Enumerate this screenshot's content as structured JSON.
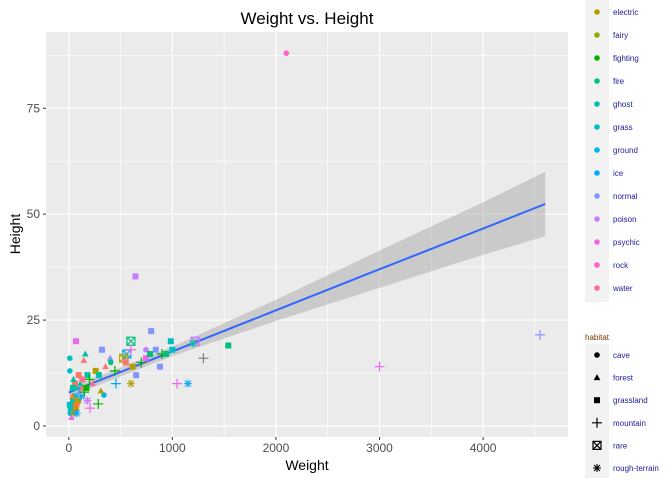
{
  "chart_data": {
    "type": "scatter",
    "title": "Weight vs. Height",
    "xlabel": "Weight",
    "ylabel": "Height",
    "xlim": [
      -220,
      4820
    ],
    "ylim": [
      -2.6,
      93
    ],
    "xticks": [
      0,
      1000,
      2000,
      3000,
      4000
    ],
    "yticks": [
      0,
      25,
      50,
      75
    ],
    "grid": true,
    "legend_position": "right",
    "color_legend": {
      "items": [
        "electric",
        "fairy",
        "fighting",
        "fire",
        "ghost",
        "grass",
        "ground",
        "ice",
        "normal",
        "poison",
        "psychic",
        "rock",
        "water"
      ]
    },
    "colors": {
      "bug": "#F8766D",
      "dark": "#E7851E",
      "dragon": "#D09400",
      "electric": "#B3A000",
      "fairy": "#8FAA00",
      "fighting": "#00B400",
      "fire": "#00C07A",
      "ghost": "#00C0A5",
      "grass": "#00BFC4",
      "ground": "#00B8E7",
      "ice": "#00A9FF",
      "normal": "#8494FF",
      "poison": "#C77CFF",
      "psychic": "#ED68ED",
      "rock": "#FF61C9",
      "water": "#FF6C91",
      "NA": "#7F7F7F"
    },
    "shape_legend": {
      "title": "habitat",
      "items": [
        "cave",
        "forest",
        "grassland",
        "mountain",
        "rare",
        "rough-terrain"
      ]
    },
    "points": [
      [
        2100,
        88,
        "rock",
        "cave"
      ],
      [
        3000,
        14,
        "psychic",
        "mountain"
      ],
      [
        4550,
        21.5,
        "normal",
        "mountain"
      ],
      [
        644,
        35.3,
        "poison",
        "grassland"
      ],
      [
        795,
        22.4,
        "normal",
        "grassland"
      ],
      [
        70,
        20,
        "psychic",
        "grassland"
      ],
      [
        600,
        20,
        "fire",
        "rare"
      ],
      [
        985,
        20,
        "grass",
        "grassland"
      ],
      [
        1220,
        20,
        "poison",
        "rare"
      ],
      [
        1540,
        19,
        "fire",
        "grassland"
      ],
      [
        10,
        16,
        "grass",
        "cave"
      ],
      [
        10,
        13,
        "grass",
        "cave"
      ],
      [
        160,
        17,
        "ghost",
        "forest"
      ],
      [
        145,
        15.5,
        "bug",
        "forest"
      ],
      [
        320,
        18,
        "normal",
        "grassland"
      ],
      [
        400,
        16,
        "normal",
        "forest"
      ],
      [
        355,
        14,
        "bug",
        "forest"
      ],
      [
        405,
        15,
        "fire",
        "cave"
      ],
      [
        445,
        13,
        "fighting",
        "mountain"
      ],
      [
        560,
        17,
        "ice",
        "rare"
      ],
      [
        530,
        16,
        "electric",
        "rare"
      ],
      [
        600,
        18,
        "psychic",
        "mountain"
      ],
      [
        550,
        15,
        "bug",
        "grassland"
      ],
      [
        615,
        14,
        "electric",
        "grassland"
      ],
      [
        700,
        15,
        "fighting",
        "mountain"
      ],
      [
        745,
        18,
        "poison",
        "cave"
      ],
      [
        745,
        16,
        "psychic",
        "grassland"
      ],
      [
        840,
        18,
        "normal",
        "grassland"
      ],
      [
        785,
        17,
        "fire",
        "grassland"
      ],
      [
        900,
        17,
        "fighting",
        "mountain"
      ],
      [
        940,
        17,
        "fire",
        "grassland"
      ],
      [
        1000,
        18,
        "grass",
        "grassland"
      ],
      [
        880,
        14,
        "normal",
        "grassland"
      ],
      [
        650,
        12,
        "normal",
        "grassland"
      ],
      [
        1300,
        16,
        "NA",
        "mountain"
      ],
      [
        1200,
        19.5,
        "ghost",
        "rough-terrain"
      ],
      [
        600,
        10,
        "electric",
        "rough-terrain"
      ],
      [
        455,
        10,
        "ice",
        "mountain"
      ],
      [
        1045,
        10,
        "psychic",
        "mountain"
      ],
      [
        1150,
        10,
        "ice",
        "rough-terrain"
      ],
      [
        340,
        7.3,
        "ground",
        "cave"
      ],
      [
        285,
        5.2,
        "fighting",
        "mountain"
      ],
      [
        205,
        4.2,
        "psychic",
        "mountain"
      ],
      [
        310,
        8.3,
        "electric",
        "forest"
      ],
      [
        180,
        12,
        "ghost",
        "grassland"
      ],
      [
        200,
        11,
        "fighting",
        "mountain"
      ],
      [
        260,
        13,
        "electric",
        "grassland"
      ],
      [
        290,
        12,
        "ghost",
        "grassland"
      ],
      [
        230,
        10,
        "water",
        "forest"
      ],
      [
        140,
        9,
        "bug",
        "grassland"
      ],
      [
        110,
        10,
        "ghost",
        "forest"
      ],
      [
        80,
        9,
        "grass",
        "forest"
      ],
      [
        60,
        7,
        "grass",
        "grassland"
      ],
      [
        40,
        6,
        "grass",
        "grassland"
      ],
      [
        30,
        5,
        "ghost",
        "grassland"
      ],
      [
        20,
        4,
        "grass",
        "grassland"
      ],
      [
        15,
        3,
        "grass",
        "cave"
      ],
      [
        25,
        2,
        "psychic",
        "forest"
      ],
      [
        50,
        3,
        "electric",
        "rough-terrain"
      ],
      [
        70,
        4,
        "dragon",
        "grassland"
      ],
      [
        90,
        6,
        "electric",
        "grassland"
      ],
      [
        120,
        7,
        "ice",
        "rough-terrain"
      ],
      [
        100,
        8,
        "normal",
        "forest"
      ],
      [
        60,
        10,
        "bug",
        "grassland"
      ],
      [
        40,
        9,
        "ghost",
        "grassland"
      ],
      [
        150,
        8,
        "fighting",
        "mountain"
      ],
      [
        180,
        6,
        "poison",
        "rough-terrain"
      ],
      [
        35,
        7,
        "dark",
        "forest"
      ],
      [
        80,
        5,
        "bug",
        "cave"
      ],
      [
        55,
        5,
        "dark",
        "grassland"
      ],
      [
        130,
        11,
        "water",
        "grassland"
      ],
      [
        95,
        12,
        "bug",
        "grassland"
      ],
      [
        170,
        9,
        "fighting",
        "grassland"
      ],
      [
        75,
        3,
        "ice",
        "rough-terrain"
      ],
      [
        10,
        5,
        "grass",
        "grassland"
      ],
      [
        45,
        11,
        "ghost",
        "forest"
      ]
    ],
    "smooth": {
      "x": [
        0,
        1000,
        2000,
        3000,
        4000,
        4600
      ],
      "y": [
        7.9,
        17.6,
        27.3,
        37.0,
        46.6,
        52.4
      ],
      "lower": [
        6.9,
        16.5,
        24.8,
        32.6,
        40.4,
        44.8
      ],
      "upper": [
        8.9,
        18.7,
        29.8,
        41.4,
        52.8,
        60.0
      ]
    }
  }
}
